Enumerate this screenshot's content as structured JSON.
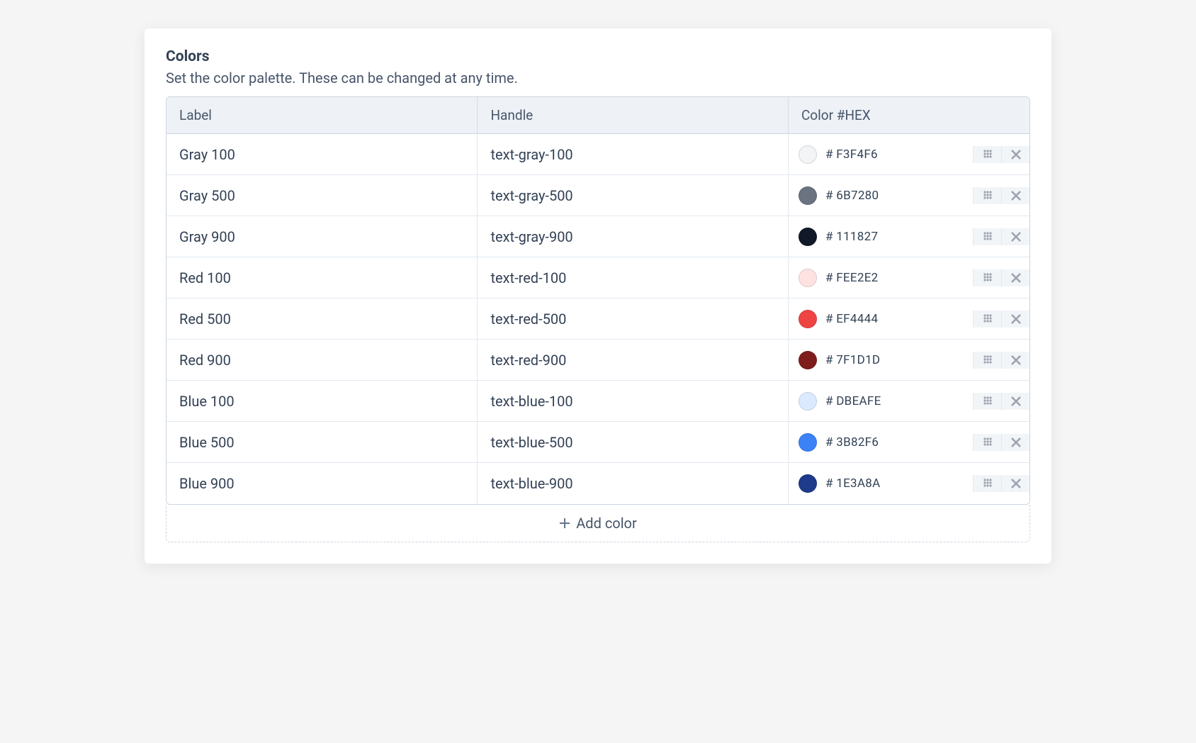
{
  "section": {
    "title": "Colors",
    "description": "Set the color palette. These can be changed at any time."
  },
  "table": {
    "headers": {
      "label": "Label",
      "handle": "Handle",
      "hex": "Color #HEX"
    },
    "rows": [
      {
        "label": "Gray 100",
        "handle": "text-gray-100",
        "hex": "# F3F4F6",
        "swatch": "#F3F4F6"
      },
      {
        "label": "Gray 500",
        "handle": "text-gray-500",
        "hex": "# 6B7280",
        "swatch": "#6B7280"
      },
      {
        "label": "Gray 900",
        "handle": "text-gray-900",
        "hex": "# 111827",
        "swatch": "#111827"
      },
      {
        "label": "Red 100",
        "handle": "text-red-100",
        "hex": "# FEE2E2",
        "swatch": "#FEE2E2"
      },
      {
        "label": "Red 500",
        "handle": "text-red-500",
        "hex": "# EF4444",
        "swatch": "#EF4444"
      },
      {
        "label": "Red 900",
        "handle": "text-red-900",
        "hex": "# 7F1D1D",
        "swatch": "#7F1D1D"
      },
      {
        "label": "Blue 100",
        "handle": "text-blue-100",
        "hex": "# DBEAFE",
        "swatch": "#DBEAFE"
      },
      {
        "label": "Blue 500",
        "handle": "text-blue-500",
        "hex": "# 3B82F6",
        "swatch": "#3B82F6"
      },
      {
        "label": "Blue 900",
        "handle": "text-blue-900",
        "hex": "# 1E3A8A",
        "swatch": "#1E3A8A"
      }
    ]
  },
  "addButton": {
    "label": "Add color"
  },
  "styling": {
    "card_bg": "#ffffff",
    "header_bg": "#eef2f7",
    "border_color": "#cbd5e1",
    "row_border": "#e2e8f0",
    "text_primary": "#334155",
    "text_secondary": "#475569",
    "action_bg": "#f2f5f8",
    "action_icon": "#9ca3af"
  }
}
